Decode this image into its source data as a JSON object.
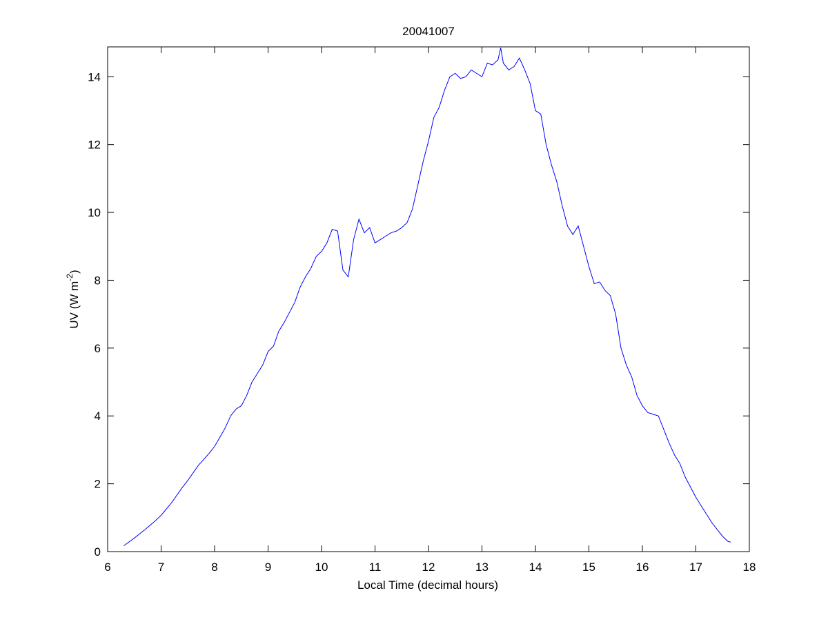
{
  "chart_data": {
    "type": "line",
    "title": "20041007",
    "xlabel": "Local Time (decimal hours)",
    "ylabel": {
      "text": "UV (W m",
      "superscript": "-2",
      "suffix": ")"
    },
    "x": [
      6.3,
      6.5,
      6.7,
      6.9,
      7.0,
      7.2,
      7.4,
      7.5,
      7.7,
      7.9,
      8.0,
      8.2,
      8.3,
      8.4,
      8.5,
      8.6,
      8.7,
      8.8,
      8.9,
      9.0,
      9.1,
      9.2,
      9.3,
      9.4,
      9.5,
      9.6,
      9.7,
      9.8,
      9.9,
      10.0,
      10.1,
      10.2,
      10.3,
      10.4,
      10.5,
      10.6,
      10.7,
      10.8,
      10.9,
      11.0,
      11.1,
      11.2,
      11.3,
      11.4,
      11.5,
      11.6,
      11.7,
      11.8,
      11.9,
      12.0,
      12.1,
      12.2,
      12.3,
      12.4,
      12.5,
      12.6,
      12.7,
      12.8,
      12.9,
      13.0,
      13.1,
      13.2,
      13.3,
      13.35,
      13.4,
      13.5,
      13.6,
      13.7,
      13.8,
      13.9,
      14.0,
      14.1,
      14.2,
      14.3,
      14.4,
      14.5,
      14.6,
      14.7,
      14.8,
      14.9,
      15.0,
      15.1,
      15.2,
      15.3,
      15.4,
      15.5,
      15.6,
      15.7,
      15.8,
      15.9,
      16.0,
      16.1,
      16.2,
      16.3,
      16.4,
      16.5,
      16.6,
      16.7,
      16.8,
      16.9,
      17.0,
      17.1,
      17.2,
      17.3,
      17.4,
      17.5,
      17.6,
      17.65
    ],
    "series": [
      {
        "color": "#0000ff",
        "values": [
          0.17,
          0.4,
          0.65,
          0.92,
          1.07,
          1.45,
          1.9,
          2.1,
          2.55,
          2.9,
          3.1,
          3.65,
          4.0,
          4.2,
          4.3,
          4.6,
          5.0,
          5.25,
          5.5,
          5.9,
          6.05,
          6.5,
          6.75,
          7.05,
          7.35,
          7.8,
          8.1,
          8.35,
          8.7,
          8.85,
          9.1,
          9.5,
          9.45,
          8.3,
          8.1,
          9.2,
          9.8,
          9.4,
          9.55,
          9.1,
          9.2,
          9.3,
          9.4,
          9.45,
          9.55,
          9.7,
          10.1,
          10.8,
          11.5,
          12.1,
          12.8,
          13.1,
          13.6,
          14.0,
          14.1,
          13.95,
          14.0,
          14.2,
          14.1,
          14.0,
          14.4,
          14.35,
          14.5,
          14.85,
          14.4,
          14.2,
          14.3,
          14.55,
          14.2,
          13.8,
          13.0,
          12.9,
          12.0,
          11.4,
          10.9,
          10.2,
          9.6,
          9.35,
          9.6,
          9.0,
          8.4,
          7.9,
          7.95,
          7.7,
          7.55,
          7.0,
          6.0,
          5.5,
          5.15,
          4.6,
          4.3,
          4.1,
          4.05,
          4.0,
          3.6,
          3.2,
          2.85,
          2.6,
          2.2,
          1.9,
          1.6,
          1.35,
          1.1,
          0.85,
          0.65,
          0.45,
          0.3,
          0.28
        ]
      }
    ],
    "xlim": [
      6,
      18
    ],
    "xticks": [
      6,
      7,
      8,
      9,
      10,
      11,
      12,
      13,
      14,
      15,
      16,
      17,
      18
    ],
    "ylim": [
      0,
      14.88
    ],
    "yticks": [
      0,
      2,
      4,
      6,
      8,
      10,
      12,
      14
    ]
  }
}
